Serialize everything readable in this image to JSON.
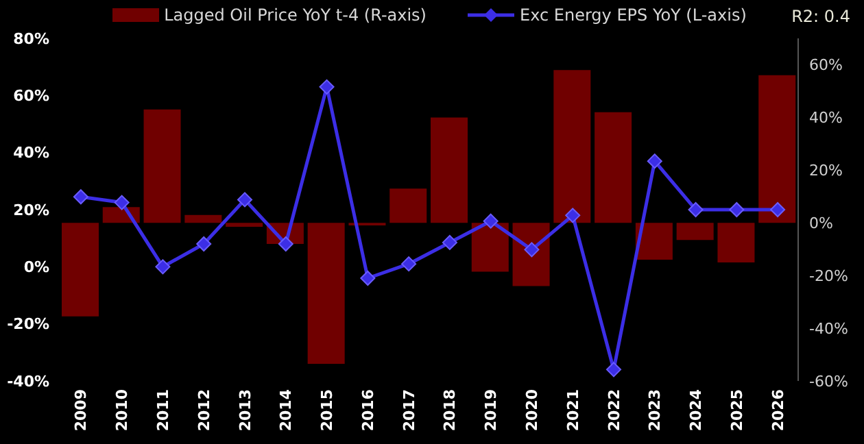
{
  "chart_data": {
    "type": "bar",
    "categories": [
      "2009",
      "2010",
      "2011",
      "2012",
      "2013",
      "2014",
      "2015",
      "2016",
      "2017",
      "2018",
      "2019",
      "2020",
      "2021",
      "2022",
      "2023",
      "2024",
      "2025",
      "2026"
    ],
    "series": [
      {
        "name": "Lagged Oil Price YoY t-4 (R-axis)",
        "axis": "y2",
        "color": "#700000",
        "values": [
          -35.5,
          6,
          43,
          3,
          -1.5,
          -8,
          -53.5,
          -1,
          13,
          40,
          -18.5,
          -24,
          58,
          42,
          -14,
          -6.5,
          -15,
          56
        ]
      },
      {
        "name": "Exc Energy EPS YoY (L-axis)",
        "type": "line",
        "color": "#3c2ee6",
        "values": [
          24.5,
          22.5,
          0,
          8,
          23.5,
          8,
          63,
          -4,
          1,
          8.5,
          16,
          6,
          18,
          -36,
          37,
          20,
          20,
          20
        ]
      }
    ],
    "ylim": [
      -40,
      80
    ],
    "yticks": [
      {
        "value": -40,
        "label": "-40%"
      },
      {
        "value": -20,
        "label": "-20%"
      },
      {
        "value": 0,
        "label": "0%"
      },
      {
        "value": 20,
        "label": "20%"
      },
      {
        "value": 40,
        "label": "40%"
      },
      {
        "value": 60,
        "label": "60%"
      },
      {
        "value": 80,
        "label": "80%"
      }
    ],
    "y2lim": [
      -60,
      70
    ],
    "y2ticks": [
      {
        "value": -60,
        "label": "-60%"
      },
      {
        "value": -40,
        "label": "-40%"
      },
      {
        "value": -20,
        "label": "-20%"
      },
      {
        "value": 0,
        "label": "0%"
      },
      {
        "value": 20,
        "label": "20%"
      },
      {
        "value": 40,
        "label": "40%"
      },
      {
        "value": 60,
        "label": "60%"
      }
    ],
    "legend": "top",
    "marker": "diamond",
    "annotations": [
      "R2: 0.4"
    ]
  }
}
